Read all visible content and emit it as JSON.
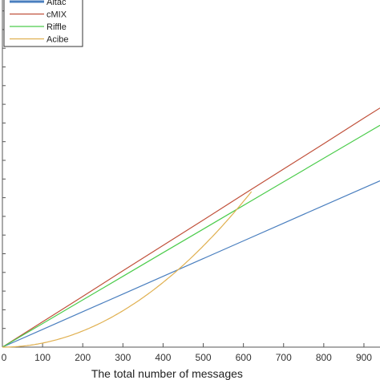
{
  "chart_data": {
    "type": "line",
    "xlabel": "The total number of messages",
    "ylabel": "",
    "title": "",
    "xlim": [
      0,
      940
    ],
    "ylim": [
      0,
      1
    ],
    "xticks": [
      0,
      100,
      200,
      300,
      400,
      500,
      600,
      700,
      800,
      900
    ],
    "grid": false,
    "legend_position": "top-left",
    "series": [
      {
        "name": "Altac",
        "color": "#4a7fbf",
        "x": [
          0,
          100,
          200,
          300,
          400,
          500,
          600,
          700,
          800,
          900,
          940
        ],
        "y": [
          0,
          0.051,
          0.102,
          0.153,
          0.204,
          0.255,
          0.306,
          0.357,
          0.408,
          0.459,
          0.479
        ]
      },
      {
        "name": "cMIX",
        "color": "#c0503a",
        "x": [
          0,
          100,
          200,
          300,
          400,
          500,
          600,
          700,
          800,
          900,
          940
        ],
        "y": [
          0,
          0.073,
          0.146,
          0.22,
          0.293,
          0.366,
          0.44,
          0.513,
          0.586,
          0.66,
          0.689
        ]
      },
      {
        "name": "Riffle",
        "color": "#4ccc4c",
        "x": [
          0,
          100,
          200,
          300,
          400,
          500,
          600,
          700,
          800,
          900,
          940
        ],
        "y": [
          0,
          0.068,
          0.136,
          0.204,
          0.272,
          0.34,
          0.408,
          0.476,
          0.544,
          0.612,
          0.639
        ]
      },
      {
        "name": "Acibe",
        "color": "#e0b050",
        "x": [
          0,
          50,
          100,
          150,
          200,
          250,
          300,
          350,
          400,
          450,
          500,
          550,
          600,
          620
        ],
        "y": [
          0,
          0.0029,
          0.0117,
          0.0263,
          0.0466,
          0.0729,
          0.105,
          0.143,
          0.187,
          0.236,
          0.291,
          0.353,
          0.42,
          0.448
        ]
      }
    ]
  }
}
